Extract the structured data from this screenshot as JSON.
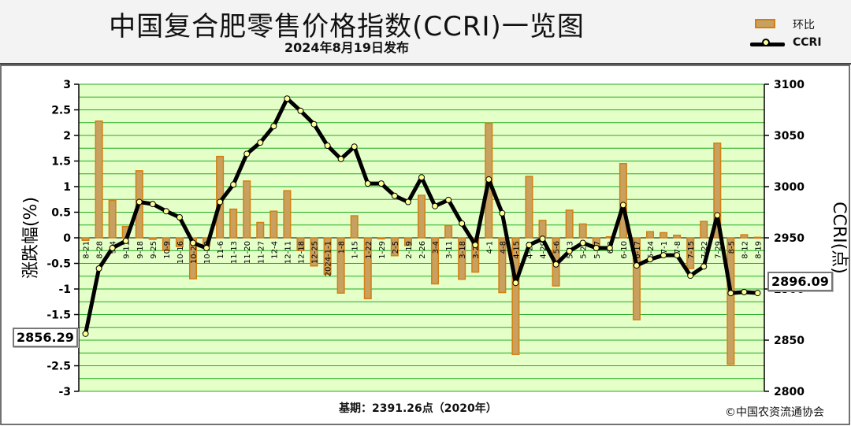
{
  "title": "中国复合肥零售价格指数(CCRI)一览图",
  "subtitle": "2024年8月19日发布",
  "footer_base": "基期：2391.26点（2020年）",
  "copyright": "©中国农资流通协会",
  "legend": {
    "bar_label": "环比",
    "line_label": "CCRI"
  },
  "callouts": {
    "first": "2856.29",
    "last": "2896.09"
  },
  "colors": {
    "plot_bg": "#e4ffc8",
    "grid": "#22aa22",
    "bar_fill": "#c8a060",
    "bar_edge": "#d47f10",
    "line": "#000000",
    "marker": "#ffff99"
  },
  "chart_data": {
    "type": "bar+line",
    "ylabel_left": "涨跌幅(%)",
    "ylabel_right": "CCRI(点)",
    "ylim_left": [
      -3,
      3
    ],
    "ylim_right": [
      2800,
      3100
    ],
    "yticks_left": [
      "-3",
      "-2.5",
      "-2",
      "-1.5",
      "-1",
      "-0.5",
      "0",
      "0.5",
      "1",
      "1.5",
      "2",
      "2.5",
      "3"
    ],
    "yticks_right": [
      "2800",
      "2850",
      "2900",
      "2950",
      "3000",
      "3050",
      "3100"
    ],
    "grid": true,
    "legend_position": "top-right",
    "categories": [
      "8-21",
      "8-28",
      "9-4",
      "9-11",
      "9-18",
      "9-25",
      "10-9",
      "10-16",
      "10-23",
      "10-30",
      "11-6",
      "11-13",
      "11-20",
      "11-27",
      "12-4",
      "12-11",
      "12-18",
      "12-25",
      "2024-1-1",
      "1-8",
      "1-15",
      "1-22",
      "1-29",
      "2-5",
      "2-19",
      "2-26",
      "3-4",
      "3-11",
      "3-18",
      "3-25",
      "4-1",
      "4-8",
      "4-15",
      "4-22",
      "4-29",
      "5-6",
      "5-13",
      "5-20",
      "5-27",
      "6-3",
      "6-10",
      "6-17",
      "6-24",
      "7-1",
      "7-8",
      "7-15",
      "7-22",
      "7-29",
      "8-5",
      "8-12",
      "8-19"
    ],
    "tick_labels": [
      "8-21",
      "8-28",
      "9-4",
      "9-11",
      "9-18",
      "9-25",
      "10-9",
      "10-16",
      "10-23",
      "10-30",
      "11-6",
      "11-13",
      "11-20",
      "11-27",
      "12-4",
      "12-11",
      "12-18",
      "12-25",
      "2024-1-1",
      "1-8",
      "1-15",
      "1-22",
      "1-29",
      "2-5",
      "2-19",
      "2-26",
      "3-4",
      "3-11",
      "3-18",
      "3-25",
      "4-1",
      "4-8",
      "4-15",
      "4-22",
      "4-29",
      "5-6",
      "5-13",
      "5-20",
      "5-27",
      "6-3",
      "6-10",
      "6-17",
      "6-24",
      "7-1",
      "7-8",
      "7-15",
      "7-22",
      "7-29",
      "8-5",
      "8-12",
      "8-19"
    ],
    "series": [
      {
        "name": "环比",
        "kind": "bar",
        "values": [
          -0.05,
          2.28,
          0.73,
          0.22,
          1.31,
          -0.03,
          -0.25,
          -0.17,
          -0.8,
          -0.16,
          1.59,
          0.56,
          1.11,
          0.3,
          0.52,
          0.92,
          -0.25,
          -0.55,
          -0.71,
          -1.08,
          0.43,
          -1.19,
          -0.02,
          -0.35,
          -0.15,
          0.83,
          -0.9,
          0.24,
          -0.81,
          -0.67,
          2.24,
          -1.07,
          -2.28,
          1.2,
          0.34,
          -0.94,
          0.54,
          0.27,
          -0.15,
          0.02,
          1.45,
          -1.6,
          0.12,
          0.1,
          0.05,
          -0.6,
          0.32,
          1.85,
          -2.47,
          0.06,
          0.01
        ]
      },
      {
        "name": "CCRI",
        "kind": "line",
        "values": [
          2856.29,
          2920,
          2940,
          2947,
          2985,
          2983,
          2976,
          2970,
          2945,
          2940,
          2985,
          3002,
          3032,
          3043,
          3059,
          3086,
          3074,
          3061,
          3040,
          3027,
          3039,
          3003,
          3003,
          2991,
          2985,
          3009,
          2981,
          2987,
          2964,
          2943,
          3007,
          2974,
          2906,
          2943,
          2949,
          2924,
          2937,
          2945,
          2940,
          2940,
          2982,
          2923,
          2929,
          2933,
          2933,
          2913,
          2922,
          2972,
          2896,
          2897,
          2896.09
        ]
      }
    ]
  }
}
